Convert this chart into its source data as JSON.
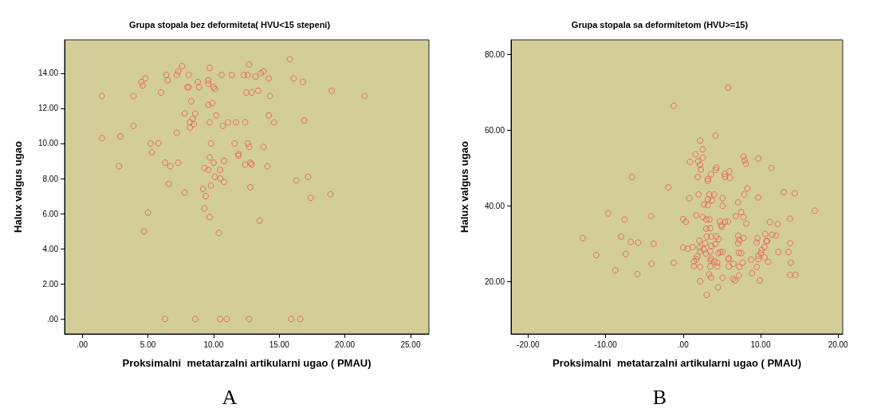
{
  "chart_data": [
    {
      "type": "scatter",
      "title": "Grupa stopala bez deformiteta( HVU<15 stepeni)",
      "xlabel": "Proksimalni  metatarzalni artikularni ugao ( PMAU)",
      "ylabel": "Halux valgus ugao",
      "annotations": [
        "A"
      ],
      "marker": "circle",
      "xlim": [
        -1.35,
        26.4
      ],
      "ylim": [
        -0.85,
        15.9
      ],
      "xticks": [
        {
          "value": 0,
          "label": ".00"
        },
        {
          "value": 5,
          "label": "5.00"
        },
        {
          "value": 10,
          "label": "10.00"
        },
        {
          "value": 15,
          "label": "15.00"
        },
        {
          "value": 20,
          "label": "20.00"
        },
        {
          "value": 25,
          "label": "25.00"
        }
      ],
      "yticks": [
        {
          "value": 0,
          "label": ".00"
        },
        {
          "value": 2,
          "label": "2.00"
        },
        {
          "value": 4,
          "label": "4.00"
        },
        {
          "value": 6,
          "label": "6.00"
        },
        {
          "value": 8,
          "label": "8.00"
        },
        {
          "value": 10,
          "label": "10.00"
        },
        {
          "value": 12,
          "label": "12.00"
        },
        {
          "value": 14,
          "label": "14.00"
        }
      ],
      "series": [
        {
          "color": "#e8534f",
          "x": [
            1.5,
            1.5,
            2.9,
            2.8,
            3.9,
            3.9,
            4.5,
            4.6,
            4.8,
            4.7,
            5.0,
            5.2,
            5.3,
            5.8,
            6.0,
            6.3,
            6.4,
            6.5,
            6.7,
            6.6,
            7.2,
            7.3,
            7.6,
            7.2,
            7.3,
            7.8,
            7.8,
            8.0,
            8.1,
            8.1,
            8.3,
            8.2,
            8.4,
            8.5,
            8.2,
            8.6,
            8.8,
            8.9,
            9.6,
            9.6,
            9.7,
            9.6,
            9.9,
            10.0,
            10.1,
            9.7,
            10.2,
            9.8,
            9.7,
            10.0,
            9.3,
            9.6,
            10.5,
            10.1,
            10.5,
            10.8,
            10.8,
            9.8,
            9.2,
            9.4,
            9.3,
            9.7,
            10.4,
            10.6,
            10.7,
            11.1,
            11.4,
            11.7,
            11.6,
            11.9,
            11.9,
            12.3,
            12.6,
            12.5,
            12.9,
            12.7,
            13.2,
            13.4,
            13.6,
            13.8,
            14.2,
            14.3,
            14.2,
            14.6,
            12.4,
            12.6,
            12.7,
            13.8,
            12.4,
            12.8,
            12.9,
            14.1,
            12.8,
            13.5,
            15.8,
            16.1,
            16.8,
            16.9,
            16.3,
            17.2,
            17.4,
            18.9,
            19.0,
            21.5,
            6.3,
            8.6,
            10.5,
            11.0,
            12.7,
            15.9,
            16.6
          ],
          "values": [
            12.7,
            10.3,
            10.4,
            8.7,
            12.7,
            11.0,
            13.5,
            13.3,
            13.7,
            5.0,
            6.05,
            10.0,
            9.5,
            10.0,
            12.9,
            8.9,
            13.9,
            13.6,
            8.7,
            7.7,
            13.9,
            14.1,
            14.4,
            10.6,
            8.9,
            11.7,
            7.2,
            13.2,
            13.2,
            13.9,
            12.4,
            11.2,
            11.4,
            11.1,
            10.9,
            11.7,
            13.5,
            13.2,
            13.6,
            13.4,
            14.3,
            12.2,
            12.3,
            13.2,
            13.1,
            11.2,
            11.6,
            10.0,
            9.2,
            8.9,
            8.6,
            8.5,
            8.5,
            8.1,
            8.0,
            7.8,
            9.0,
            7.6,
            7.4,
            7.0,
            6.3,
            5.8,
            4.9,
            13.9,
            11.0,
            11.2,
            13.9,
            11.2,
            10.0,
            9.4,
            9.3,
            13.9,
            13.9,
            12.9,
            12.9,
            14.5,
            13.8,
            13.0,
            14.0,
            14.1,
            13.7,
            12.7,
            11.6,
            11.2,
            11.2,
            10.0,
            9.8,
            9.8,
            8.8,
            8.9,
            8.8,
            8.7,
            7.5,
            5.6,
            14.8,
            13.7,
            13.5,
            11.3,
            7.9,
            8.1,
            6.9,
            7.1,
            13.0,
            12.7,
            0,
            0,
            0,
            0,
            0,
            0,
            0
          ]
        }
      ]
    },
    {
      "type": "scatter",
      "title": "Grupa stopala sa deformitetom (HVU>=15)",
      "xlabel": "Proksimalni  metatarzalni artikularni ugao ( PMAU)",
      "ylabel": "Halux valgus ugao",
      "annotations": [
        "B"
      ],
      "marker": "circle",
      "xlim": [
        -22.2,
        20.6
      ],
      "ylim": [
        6.2,
        83.8
      ],
      "xticks": [
        {
          "value": -20,
          "label": "-20.00"
        },
        {
          "value": -10,
          "label": "-10.00"
        },
        {
          "value": 0,
          "label": ".00"
        },
        {
          "value": 10,
          "label": "10.00"
        },
        {
          "value": 20,
          "label": "20.00"
        }
      ],
      "yticks": [
        {
          "value": 20,
          "label": "20.00"
        },
        {
          "value": 40,
          "label": "40.00"
        },
        {
          "value": 60,
          "label": "60.00"
        },
        {
          "value": 80,
          "label": "80.00"
        }
      ],
      "series": [
        {
          "color": "#e8534f",
          "x": [
            -12.95,
            -11.2,
            -9.65,
            -8.75,
            -8.0,
            -7.55,
            -7.4,
            -6.75,
            -6.6,
            -5.9,
            -5.8,
            -4.15,
            -4.05,
            -3.8,
            -1.9,
            -1.2,
            -1.2,
            0.0,
            0.0,
            0.35,
            0.6,
            0.8,
            0.9,
            1.25,
            1.4,
            1.4,
            1.6,
            1.7,
            1.7,
            1.85,
            1.9,
            1.95,
            2.0,
            2.1,
            2.15,
            2.2,
            2.2,
            2.2,
            2.2,
            2.2,
            2.3,
            2.55,
            2.55,
            2.55,
            2.65,
            2.7,
            2.85,
            2.95,
            3.0,
            3.0,
            3.05,
            3.05,
            3.2,
            3.2,
            3.2,
            3.2,
            3.35,
            3.4,
            3.4,
            3.5,
            3.5,
            3.5,
            3.55,
            3.6,
            3.6,
            3.6,
            3.65,
            3.65,
            3.75,
            4.0,
            4.0,
            4.15,
            4.2,
            4.2,
            4.3,
            4.3,
            4.4,
            4.4,
            4.5,
            4.55,
            4.6,
            4.75,
            4.8,
            4.9,
            5.0,
            5.1,
            5.1,
            5.1,
            5.1,
            5.35,
            5.4,
            5.4,
            5.8,
            5.8,
            5.85,
            5.9,
            5.9,
            5.95,
            6.05,
            6.5,
            6.45,
            6.7,
            6.8,
            7.1,
            7.1,
            7.1,
            7.2,
            7.2,
            7.25,
            7.25,
            7.5,
            7.5,
            7.7,
            7.8,
            7.8,
            7.8,
            7.9,
            7.95,
            8.1,
            8.15,
            8.3,
            8.8,
            8.9,
            9.5,
            9.5,
            9.6,
            9.7,
            9.7,
            9.7,
            9.7,
            9.9,
            10.05,
            10.15,
            10.5,
            10.5,
            10.6,
            10.75,
            10.85,
            11.0,
            11.2,
            11.4,
            11.5,
            12.0,
            12.2,
            12.3,
            13.0,
            13.6,
            13.8,
            13.8,
            13.8,
            13.9,
            14.4,
            14.5,
            17.0
          ],
          "values": [
            31.5,
            27.0,
            38.0,
            23.0,
            31.9,
            36.4,
            27.3,
            30.5,
            47.6,
            22.0,
            30.3,
            37.3,
            24.7,
            30.0,
            44.9,
            66.4,
            25.0,
            29.0,
            36.5,
            35.8,
            28.7,
            42.0,
            51.6,
            29.1,
            25.3,
            24.1,
            53.6,
            37.5,
            25.9,
            26.6,
            47.6,
            51.7,
            43.0,
            30.8,
            29.0,
            23.9,
            28.0,
            20.1,
            57.2,
            50.8,
            49.6,
            54.9,
            52.7,
            37.0,
            28.5,
            40.4,
            30.1,
            27.4,
            36.4,
            34.0,
            31.9,
            16.5,
            47.1,
            46.6,
            40.2,
            41.7,
            21.9,
            36.4,
            43.0,
            34.1,
            24.0,
            28.0,
            25.5,
            26.1,
            21.1,
            48.3,
            31.9,
            29.4,
            41.4,
            43.0,
            25.3,
            29.9,
            58.5,
            49.5,
            50.1,
            31.9,
            25.0,
            24.0,
            18.5,
            27.5,
            31.2,
            35.9,
            27.8,
            34.9,
            34.5,
            21.0,
            42.0,
            40.0,
            27.8,
            48.4,
            47.7,
            35.8,
            35.9,
            71.2,
            25.9,
            26.2,
            24.0,
            49.1,
            47.4,
            24.7,
            20.7,
            20.3,
            37.3,
            40.9,
            32.1,
            30.1,
            27.6,
            21.6,
            23.9,
            31.0,
            27.5,
            38.3,
            25.0,
            31.5,
            37.0,
            53.0,
            43.0,
            52.0,
            51.1,
            35.3,
            44.6,
            25.8,
            22.2,
            30.3,
            23.9,
            31.5,
            52.5,
            42.2,
            26.8,
            25.9,
            20.3,
            27.5,
            28.4,
            26.4,
            29.1,
            32.6,
            30.7,
            30.7,
            25.2,
            35.7,
            50.0,
            32.4,
            32.2,
            35.2,
            27.8,
            43.6,
            27.8,
            36.6,
            30.1,
            21.8,
            25.0,
            43.3,
            21.8,
            38.7
          ]
        }
      ]
    }
  ]
}
